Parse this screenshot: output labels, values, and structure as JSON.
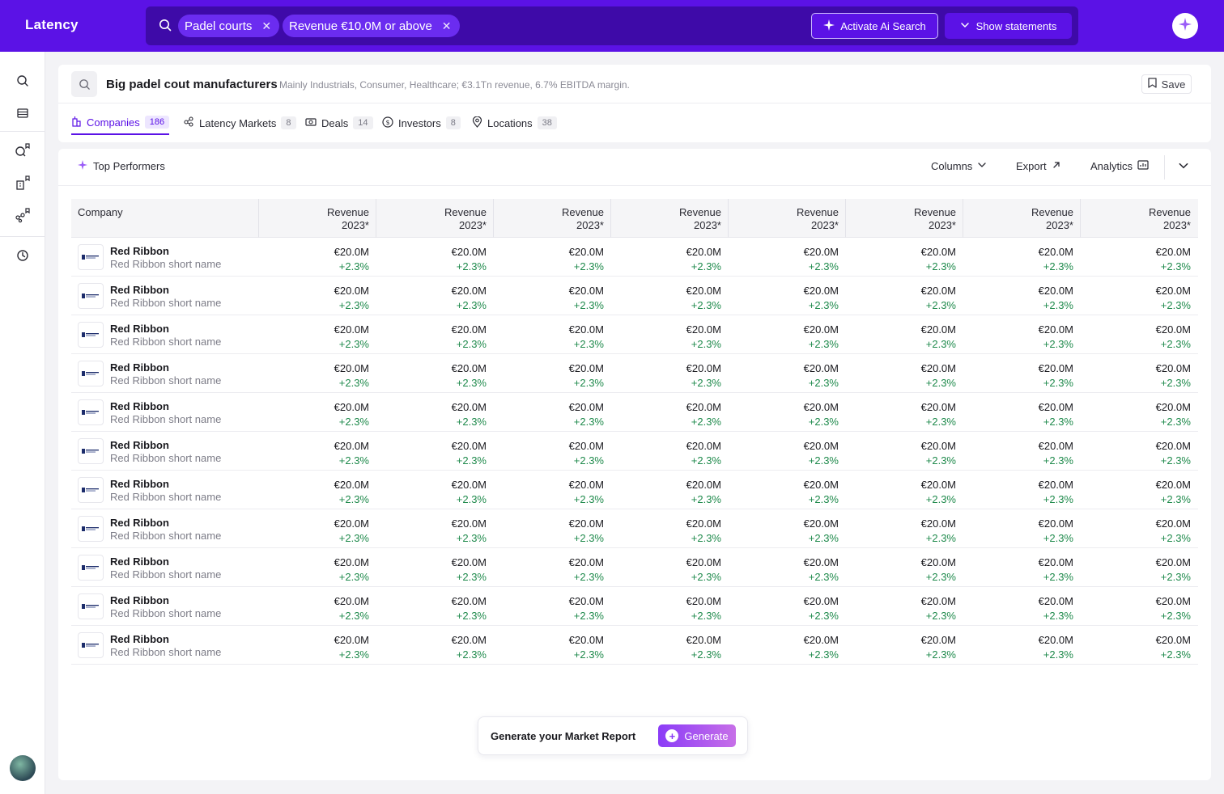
{
  "app": {
    "brand": "Latency"
  },
  "search": {
    "chips": [
      {
        "label": "Padel courts"
      },
      {
        "label": "Revenue €10.0M or above"
      }
    ],
    "ai_button": "Activate Ai Search",
    "statements_button": "Show statements"
  },
  "header": {
    "title": "Big padel cout manufacturers",
    "subtitle": "Mainly Industrials, Consumer, Healthcare; €3.1Tn revenue, 6.7% EBITDA margin.",
    "save_label": "Save"
  },
  "tabs": [
    {
      "label": "Companies",
      "count": "186",
      "icon": "building-icon"
    },
    {
      "label": "Latency Markets",
      "count": "8",
      "icon": "network-icon"
    },
    {
      "label": "Deals",
      "count": "14",
      "icon": "money-icon"
    },
    {
      "label": "Investors",
      "count": "8",
      "icon": "dollar-circle-icon"
    },
    {
      "label": "Locations",
      "count": "38",
      "icon": "pin-icon"
    }
  ],
  "toolbar": {
    "top_performers": "Top Performers",
    "columns": "Columns",
    "export": "Export",
    "analytics": "Analytics"
  },
  "table": {
    "company_header": "Company",
    "columns": [
      {
        "label": "Revenue",
        "year": "2023*"
      },
      {
        "label": "Revenue",
        "year": "2023*"
      },
      {
        "label": "Revenue",
        "year": "2023*"
      },
      {
        "label": "Revenue",
        "year": "2023*"
      },
      {
        "label": "Revenue",
        "year": "2023*"
      },
      {
        "label": "Revenue",
        "year": "2023*"
      },
      {
        "label": "Revenue",
        "year": "2023*"
      },
      {
        "label": "Revenue",
        "year": "2023*"
      }
    ],
    "rows": [
      {
        "name": "Red Ribbon",
        "short": "Red Ribbon short name",
        "values": [
          "€20.0M",
          "€20.0M",
          "€20.0M",
          "€20.0M",
          "€20.0M",
          "€20.0M",
          "€20.0M",
          "€20.0M"
        ],
        "changes": [
          "+2.3%",
          "+2.3%",
          "+2.3%",
          "+2.3%",
          "+2.3%",
          "+2.3%",
          "+2.3%",
          "+2.3%"
        ]
      },
      {
        "name": "Red Ribbon",
        "short": "Red Ribbon short name",
        "values": [
          "€20.0M",
          "€20.0M",
          "€20.0M",
          "€20.0M",
          "€20.0M",
          "€20.0M",
          "€20.0M",
          "€20.0M"
        ],
        "changes": [
          "+2.3%",
          "+2.3%",
          "+2.3%",
          "+2.3%",
          "+2.3%",
          "+2.3%",
          "+2.3%",
          "+2.3%"
        ]
      },
      {
        "name": "Red Ribbon",
        "short": "Red Ribbon short name",
        "values": [
          "€20.0M",
          "€20.0M",
          "€20.0M",
          "€20.0M",
          "€20.0M",
          "€20.0M",
          "€20.0M",
          "€20.0M"
        ],
        "changes": [
          "+2.3%",
          "+2.3%",
          "+2.3%",
          "+2.3%",
          "+2.3%",
          "+2.3%",
          "+2.3%",
          "+2.3%"
        ]
      },
      {
        "name": "Red Ribbon",
        "short": "Red Ribbon short name",
        "values": [
          "€20.0M",
          "€20.0M",
          "€20.0M",
          "€20.0M",
          "€20.0M",
          "€20.0M",
          "€20.0M",
          "€20.0M"
        ],
        "changes": [
          "+2.3%",
          "+2.3%",
          "+2.3%",
          "+2.3%",
          "+2.3%",
          "+2.3%",
          "+2.3%",
          "+2.3%"
        ]
      },
      {
        "name": "Red Ribbon",
        "short": "Red Ribbon short name",
        "values": [
          "€20.0M",
          "€20.0M",
          "€20.0M",
          "€20.0M",
          "€20.0M",
          "€20.0M",
          "€20.0M",
          "€20.0M"
        ],
        "changes": [
          "+2.3%",
          "+2.3%",
          "+2.3%",
          "+2.3%",
          "+2.3%",
          "+2.3%",
          "+2.3%",
          "+2.3%"
        ]
      },
      {
        "name": "Red Ribbon",
        "short": "Red Ribbon short name",
        "values": [
          "€20.0M",
          "€20.0M",
          "€20.0M",
          "€20.0M",
          "€20.0M",
          "€20.0M",
          "€20.0M",
          "€20.0M"
        ],
        "changes": [
          "+2.3%",
          "+2.3%",
          "+2.3%",
          "+2.3%",
          "+2.3%",
          "+2.3%",
          "+2.3%",
          "+2.3%"
        ]
      },
      {
        "name": "Red Ribbon",
        "short": "Red Ribbon short name",
        "values": [
          "€20.0M",
          "€20.0M",
          "€20.0M",
          "€20.0M",
          "€20.0M",
          "€20.0M",
          "€20.0M",
          "€20.0M"
        ],
        "changes": [
          "+2.3%",
          "+2.3%",
          "+2.3%",
          "+2.3%",
          "+2.3%",
          "+2.3%",
          "+2.3%",
          "+2.3%"
        ]
      },
      {
        "name": "Red Ribbon",
        "short": "Red Ribbon short name",
        "values": [
          "€20.0M",
          "€20.0M",
          "€20.0M",
          "€20.0M",
          "€20.0M",
          "€20.0M",
          "€20.0M",
          "€20.0M"
        ],
        "changes": [
          "+2.3%",
          "+2.3%",
          "+2.3%",
          "+2.3%",
          "+2.3%",
          "+2.3%",
          "+2.3%",
          "+2.3%"
        ]
      },
      {
        "name": "Red Ribbon",
        "short": "Red Ribbon short name",
        "values": [
          "€20.0M",
          "€20.0M",
          "€20.0M",
          "€20.0M",
          "€20.0M",
          "€20.0M",
          "€20.0M",
          "€20.0M"
        ],
        "changes": [
          "+2.3%",
          "+2.3%",
          "+2.3%",
          "+2.3%",
          "+2.3%",
          "+2.3%",
          "+2.3%",
          "+2.3%"
        ]
      },
      {
        "name": "Red Ribbon",
        "short": "Red Ribbon short name",
        "values": [
          "€20.0M",
          "€20.0M",
          "€20.0M",
          "€20.0M",
          "€20.0M",
          "€20.0M",
          "€20.0M",
          "€20.0M"
        ],
        "changes": [
          "+2.3%",
          "+2.3%",
          "+2.3%",
          "+2.3%",
          "+2.3%",
          "+2.3%",
          "+2.3%",
          "+2.3%"
        ]
      },
      {
        "name": "Red Ribbon",
        "short": "Red Ribbon short name",
        "values": [
          "€20.0M",
          "€20.0M",
          "€20.0M",
          "€20.0M",
          "€20.0M",
          "€20.0M",
          "€20.0M",
          "€20.0M"
        ],
        "changes": [
          "+2.3%",
          "+2.3%",
          "+2.3%",
          "+2.3%",
          "+2.3%",
          "+2.3%",
          "+2.3%",
          "+2.3%"
        ]
      }
    ]
  },
  "report": {
    "label": "Generate your Market Report",
    "button": "Generate"
  },
  "colors": {
    "brand": "#5b12e6",
    "positive": "#1f8a4c",
    "generate_gradient_start": "#8b3cf7",
    "generate_gradient_end": "#c76fe8"
  }
}
